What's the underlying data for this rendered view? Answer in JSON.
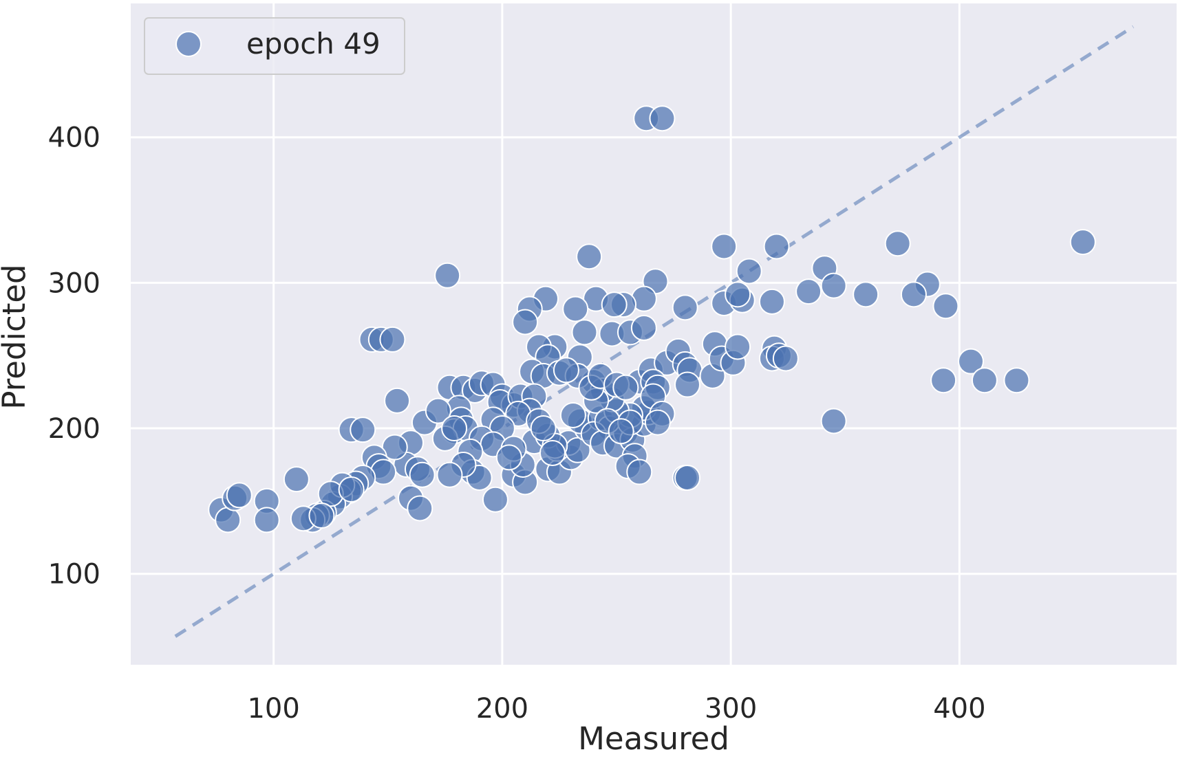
{
  "chart_data": {
    "type": "scatter",
    "title": "",
    "xlabel": "Measured",
    "ylabel": "Predicted",
    "xlim": [
      37.5,
      495
    ],
    "ylim": [
      37.5,
      492
    ],
    "xticks": [
      100,
      200,
      300,
      400
    ],
    "yticks": [
      100,
      200,
      300,
      400
    ],
    "grid": true,
    "legend_position": "top-left",
    "colors": {
      "background": "#eaeaf2",
      "grid": "#ffffff",
      "point": "#4c72b0",
      "point_edge": "#ffffff",
      "reference_line": "#4c72b0"
    },
    "reference_line": {
      "x": [
        57,
        476
      ],
      "y": [
        57,
        476
      ],
      "style": "dashed"
    },
    "series": [
      {
        "name": "epoch 49",
        "points": [
          [
            263,
            413
          ],
          [
            270,
            413
          ],
          [
            176,
            305
          ],
          [
            238,
            318
          ],
          [
            297,
            325
          ],
          [
            320,
            325
          ],
          [
            373,
            327
          ],
          [
            454,
            328
          ],
          [
            267,
            301
          ],
          [
            308,
            308
          ],
          [
            341,
            310
          ],
          [
            345,
            298
          ],
          [
            334,
            294
          ],
          [
            359,
            292
          ],
          [
            386,
            299
          ],
          [
            380,
            292
          ],
          [
            394,
            284
          ],
          [
            219,
            289
          ],
          [
            241,
            289
          ],
          [
            262,
            289
          ],
          [
            253,
            285
          ],
          [
            249,
            285
          ],
          [
            232,
            282
          ],
          [
            212,
            282
          ],
          [
            210,
            273
          ],
          [
            280,
            283
          ],
          [
            297,
            286
          ],
          [
            305,
            288
          ],
          [
            318,
            287
          ],
          [
            303,
            292
          ],
          [
            143,
            261
          ],
          [
            147,
            261
          ],
          [
            152,
            261
          ],
          [
            248,
            265
          ],
          [
            256,
            266
          ],
          [
            262,
            269
          ],
          [
            236,
            266
          ],
          [
            223,
            256
          ],
          [
            216,
            256
          ],
          [
            220,
            249
          ],
          [
            234,
            249
          ],
          [
            240,
            232
          ],
          [
            213,
            239
          ],
          [
            218,
            236
          ],
          [
            225,
            238
          ],
          [
            233,
            236
          ],
          [
            228,
            240
          ],
          [
            260,
            232
          ],
          [
            265,
            240
          ],
          [
            272,
            245
          ],
          [
            277,
            253
          ],
          [
            280,
            244
          ],
          [
            282,
            240
          ],
          [
            281,
            230
          ],
          [
            292,
            236
          ],
          [
            293,
            258
          ],
          [
            296,
            248
          ],
          [
            301,
            245
          ],
          [
            303,
            256
          ],
          [
            319,
            255
          ],
          [
            318,
            248
          ],
          [
            321,
            250
          ],
          [
            324,
            248
          ],
          [
            405,
            246
          ],
          [
            393,
            233
          ],
          [
            411,
            233
          ],
          [
            425,
            233
          ],
          [
            345,
            205
          ],
          [
            177,
            228
          ],
          [
            183,
            228
          ],
          [
            188,
            226
          ],
          [
            191,
            231
          ],
          [
            196,
            230
          ],
          [
            200,
            222
          ],
          [
            205,
            216
          ],
          [
            199,
            218
          ],
          [
            208,
            222
          ],
          [
            214,
            222
          ],
          [
            212,
            212
          ],
          [
            207,
            210
          ],
          [
            181,
            214
          ],
          [
            182,
            206
          ],
          [
            179,
            198
          ],
          [
            184,
            200
          ],
          [
            196,
            206
          ],
          [
            200,
            200
          ],
          [
            191,
            193
          ],
          [
            196,
            189
          ],
          [
            186,
            184
          ],
          [
            187,
            170
          ],
          [
            190,
            166
          ],
          [
            183,
            175
          ],
          [
            177,
            168
          ],
          [
            134,
            199
          ],
          [
            139,
            199
          ],
          [
            154,
            219
          ],
          [
            166,
            204
          ],
          [
            172,
            212
          ],
          [
            175,
            193
          ],
          [
            179,
            200
          ],
          [
            160,
            190
          ],
          [
            158,
            175
          ],
          [
            163,
            172
          ],
          [
            165,
            168
          ],
          [
            160,
            152
          ],
          [
            164,
            145
          ],
          [
            153,
            187
          ],
          [
            144,
            180
          ],
          [
            146,
            174
          ],
          [
            148,
            170
          ],
          [
            139,
            166
          ],
          [
            136,
            162
          ],
          [
            133,
            157
          ],
          [
            129,
            153
          ],
          [
            126,
            148
          ],
          [
            122,
            142
          ],
          [
            119,
            140
          ],
          [
            117,
            137
          ],
          [
            113,
            138
          ],
          [
            110,
            165
          ],
          [
            130,
            161
          ],
          [
            125,
            155
          ],
          [
            134,
            158
          ],
          [
            77,
            144
          ],
          [
            80,
            137
          ],
          [
            83,
            152
          ],
          [
            85,
            154
          ],
          [
            97,
            150
          ],
          [
            97,
            137
          ],
          [
            121,
            140
          ],
          [
            197,
            151
          ],
          [
            205,
            168
          ],
          [
            210,
            163
          ],
          [
            209,
            175
          ],
          [
            220,
            172
          ],
          [
            225,
            170
          ],
          [
            230,
            180
          ],
          [
            224,
            186
          ],
          [
            229,
            190
          ],
          [
            233,
            185
          ],
          [
            237,
            200
          ],
          [
            234,
            205
          ],
          [
            231,
            209
          ],
          [
            243,
            207
          ],
          [
            247,
            200
          ],
          [
            240,
            196
          ],
          [
            244,
            190
          ],
          [
            250,
            188
          ],
          [
            254,
            197
          ],
          [
            257,
            192
          ],
          [
            258,
            181
          ],
          [
            255,
            174
          ],
          [
            260,
            170
          ],
          [
            262,
            203
          ],
          [
            264,
            211
          ],
          [
            262,
            214
          ],
          [
            256,
            209
          ],
          [
            250,
            212
          ],
          [
            248,
            220
          ],
          [
            244,
            226
          ],
          [
            241,
            219
          ],
          [
            239,
            228
          ],
          [
            243,
            236
          ],
          [
            250,
            230
          ],
          [
            254,
            228
          ],
          [
            266,
            232
          ],
          [
            268,
            228
          ],
          [
            266,
            222
          ],
          [
            270,
            210
          ],
          [
            268,
            204
          ],
          [
            246,
            205
          ],
          [
            256,
            204
          ],
          [
            252,
            198
          ],
          [
            214,
            191
          ],
          [
            220,
            195
          ],
          [
            223,
            188
          ],
          [
            222,
            183
          ],
          [
            216,
            205
          ],
          [
            218,
            200
          ],
          [
            205,
            186
          ],
          [
            203,
            180
          ],
          [
            280,
            166
          ],
          [
            281,
            166
          ]
        ]
      }
    ]
  }
}
